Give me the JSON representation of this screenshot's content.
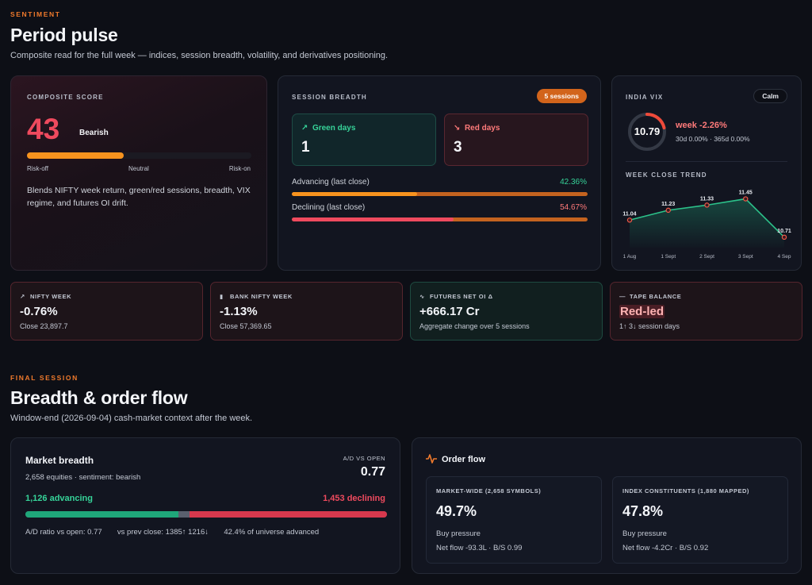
{
  "pulse": {
    "eyebrow": "SENTIMENT",
    "title": "Period pulse",
    "subtitle": "Composite read for the full week — indices, session breadth, volatility, and derivatives positioning."
  },
  "composite": {
    "label": "COMPOSITE SCORE",
    "score": "43",
    "score_fraction": 0.43,
    "verdict": "Bearish",
    "scale": [
      "Risk-off",
      "Neutral",
      "Risk-on"
    ],
    "description": "Blends NIFTY week return, green/red sessions, breadth, VIX regime, and futures OI drift.",
    "colors": {
      "score": "#ef4a5e",
      "bar": "#f7931e"
    }
  },
  "session_breadth": {
    "label": "SESSION BREADTH",
    "pill": "5 sessions",
    "green_label": "Green days",
    "green_value": "1",
    "red_label": "Red days",
    "red_value": "3",
    "advancing_label": "Advancing (last close)",
    "advancing_value": "42.36%",
    "advancing_fraction": 0.4236,
    "declining_label": "Declining (last close)",
    "declining_value": "54.67%",
    "declining_fraction": 0.5467
  },
  "vix": {
    "label": "INDIA VIX",
    "regime": "Calm",
    "value": "10.79",
    "week": "week -2.26%",
    "sub": "30d 0.00% · 365d 0.00%",
    "trend_label": "WEEK CLOSE TREND"
  },
  "chart_data": {
    "type": "area",
    "title": "WEEK CLOSE TREND",
    "categories": [
      "1 Aug",
      "1 Sept",
      "2 Sept",
      "3 Sept",
      "4 Sep"
    ],
    "series": [
      {
        "values": [
          11.04,
          11.23,
          11.33,
          11.45,
          10.71
        ]
      }
    ],
    "data_labels": [
      "11.04",
      "11.23",
      "11.33",
      "11.45",
      "10.71"
    ],
    "ylim": [
      10.6,
      11.55
    ],
    "grid": false
  },
  "stats": [
    {
      "icon": "trend-up-icon",
      "glyph": "↗",
      "label": "NIFTY WEEK",
      "value": "-0.76%",
      "sub": "Close 23,897.7"
    },
    {
      "icon": "bar-chart-icon",
      "glyph": "▮",
      "label": "BANK NIFTY WEEK",
      "value": "-1.13%",
      "sub": "Close 57,369.65"
    },
    {
      "icon": "pulse-icon",
      "glyph": "∿",
      "label": "FUTURES NET OI Δ",
      "value": "+666.17 Cr",
      "sub": "Aggregate change over 5 sessions"
    },
    {
      "icon": "dash-icon",
      "glyph": "—",
      "label": "TAPE BALANCE",
      "value": "Red-led",
      "sub": "1↑ 3↓ session days"
    }
  ],
  "final": {
    "eyebrow": "FINAL SESSION",
    "title": "Breadth & order flow",
    "subtitle": "Window-end (2026-09-04) cash-market context after the week."
  },
  "market_breadth": {
    "title": "Market breadth",
    "sub": "2,658 equities · sentiment: bearish",
    "ad_label": "A/D VS OPEN",
    "ad_value": "0.77",
    "advancing": "1,126 advancing",
    "declining": "1,453 declining",
    "adv_count": 1126,
    "unch_count": 79,
    "dec_count": 1453,
    "footer_ratio": "A/D ratio vs open: 0.77",
    "footer_prev": "vs prev close: 1385↑ 1216↓",
    "footer_pct": "42.4% of universe advanced"
  },
  "order_flow": {
    "title": "Order flow",
    "boxes": [
      {
        "label": "MARKET-WIDE (2,658 SYMBOLS)",
        "value": "49.7%",
        "sub1": "Buy pressure",
        "sub2": "Net flow -93.3L · B/S 0.99"
      },
      {
        "label": "INDEX CONSTITUENTS (1,880 MAPPED)",
        "value": "47.8%",
        "sub1": "Buy pressure",
        "sub2": "Net flow -4.2Cr · B/S 0.92"
      }
    ]
  }
}
